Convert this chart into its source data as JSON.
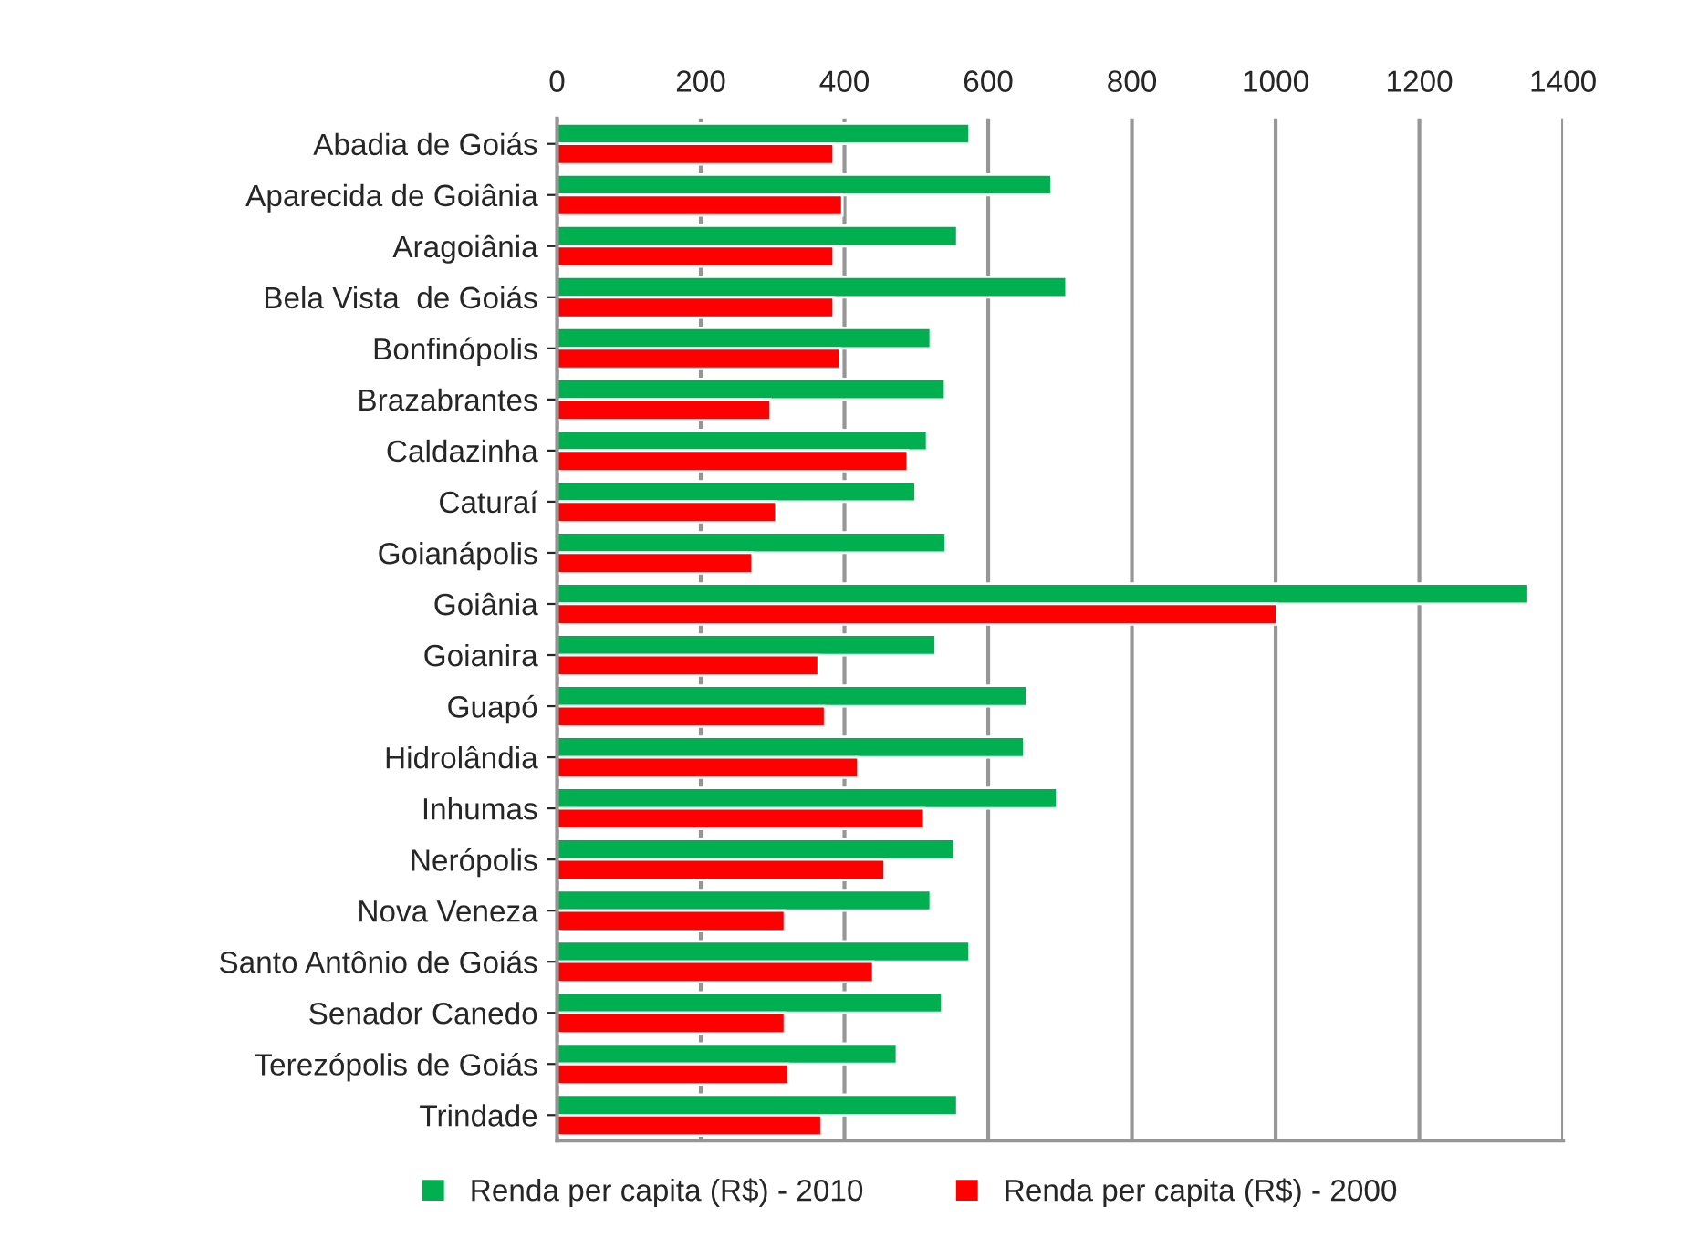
{
  "chart_data": {
    "type": "bar",
    "orientation": "horizontal",
    "categories": [
      "Abadia de Goiás",
      "Aparecida de Goiânia",
      "Aragoiânia",
      "Bela Vista  de Goiás",
      "Bonfinópolis",
      "Brazabrantes",
      "Caldazinha",
      "Caturaí",
      "Goianápolis",
      "Goiânia",
      "Goianira",
      "Guapó",
      "Hidrolândia",
      "Inhumas",
      "Nerópolis",
      "Nova Veneza",
      "Santo Antônio de Goiás",
      "Senador Canedo",
      "Terezópolis de Goiás",
      "Trindade"
    ],
    "series": [
      {
        "name": "Renda per capita (R$) - 2010",
        "color": "#00b050",
        "values": [
          574,
          688,
          557,
          709,
          520,
          540,
          515,
          499,
          541,
          1352,
          527,
          654,
          650,
          696,
          553,
          520,
          574,
          536,
          473,
          557
        ]
      },
      {
        "name": "Renda per capita (R$) - 2000",
        "color": "#ff0000",
        "values": [
          385,
          397,
          385,
          385,
          394,
          297,
          488,
          305,
          272,
          1002,
          364,
          373,
          419,
          511,
          456,
          317,
          440,
          317,
          322,
          368
        ]
      }
    ],
    "xlim": [
      0,
      1400
    ],
    "xticks": [
      0,
      200,
      400,
      600,
      800,
      1000,
      1200,
      1400
    ],
    "grid": "x",
    "legend": "bottom"
  }
}
